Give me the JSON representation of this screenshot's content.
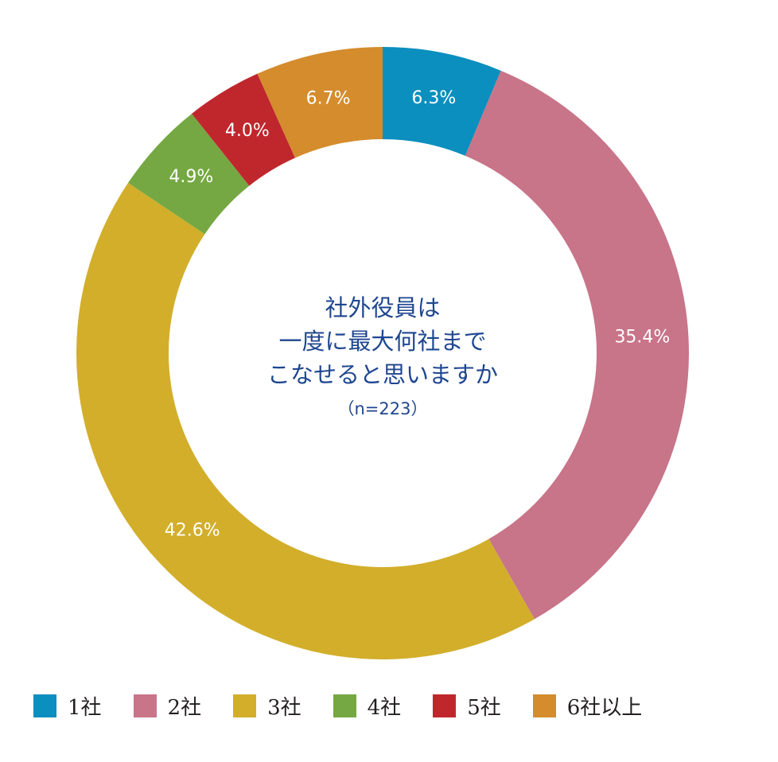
{
  "chart_data": {
    "type": "pie",
    "subtype": "donut",
    "categories": [
      "1社",
      "2社",
      "3社",
      "4社",
      "5社",
      "6社以上"
    ],
    "values": [
      6.3,
      35.4,
      42.6,
      4.9,
      4.0,
      6.7
    ],
    "value_labels": [
      "6.3%",
      "35.4%",
      "42.6%",
      "4.9%",
      "4.0%",
      "6.7%"
    ],
    "colors": [
      "#0a8fbe",
      "#c87489",
      "#d2ae2b",
      "#75a842",
      "#c0272d",
      "#d48c2d"
    ],
    "center_title_lines": [
      "社外役員は",
      "一度に最大何社まで",
      "こなせると思いますか"
    ],
    "center_note": "（n=223）",
    "legend_position": "bottom",
    "start_angle": "12 o'clock",
    "direction": "clockwise"
  }
}
